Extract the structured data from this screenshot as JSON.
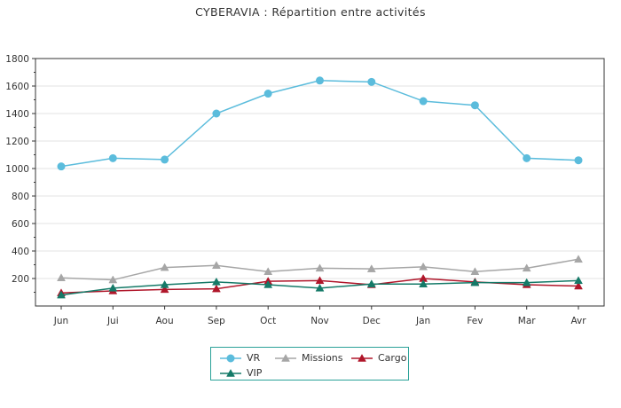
{
  "chart_data": {
    "type": "line",
    "title": "CYBERAVIA : Répartition entre activités",
    "xlabel": "",
    "ylabel": "",
    "categories": [
      "Jun",
      "Jui",
      "Aou",
      "Sep",
      "Oct",
      "Nov",
      "Dec",
      "Jan",
      "Fev",
      "Mar",
      "Avr"
    ],
    "ylim": [
      0,
      1800
    ],
    "yticks": [
      200,
      400,
      600,
      800,
      1000,
      1200,
      1400,
      1600,
      1800
    ],
    "grid": true,
    "legend_position": "bottom",
    "series": [
      {
        "name": "VR",
        "color": "#5bbcdc",
        "marker": "circle",
        "values": [
          1015,
          1075,
          1065,
          1400,
          1545,
          1640,
          1630,
          1490,
          1460,
          1075,
          1060
        ]
      },
      {
        "name": "Missions",
        "color": "#a6a6a6",
        "marker": "triangle",
        "values": [
          205,
          190,
          280,
          295,
          250,
          275,
          270,
          285,
          250,
          275,
          340
        ]
      },
      {
        "name": "Cargo",
        "color": "#b0162a",
        "marker": "triangle",
        "values": [
          95,
          110,
          120,
          125,
          180,
          185,
          155,
          200,
          175,
          155,
          145
        ]
      },
      {
        "name": "VIP",
        "color": "#157a68",
        "marker": "triangle",
        "values": [
          80,
          130,
          155,
          175,
          155,
          130,
          160,
          160,
          170,
          170,
          185
        ]
      }
    ]
  }
}
